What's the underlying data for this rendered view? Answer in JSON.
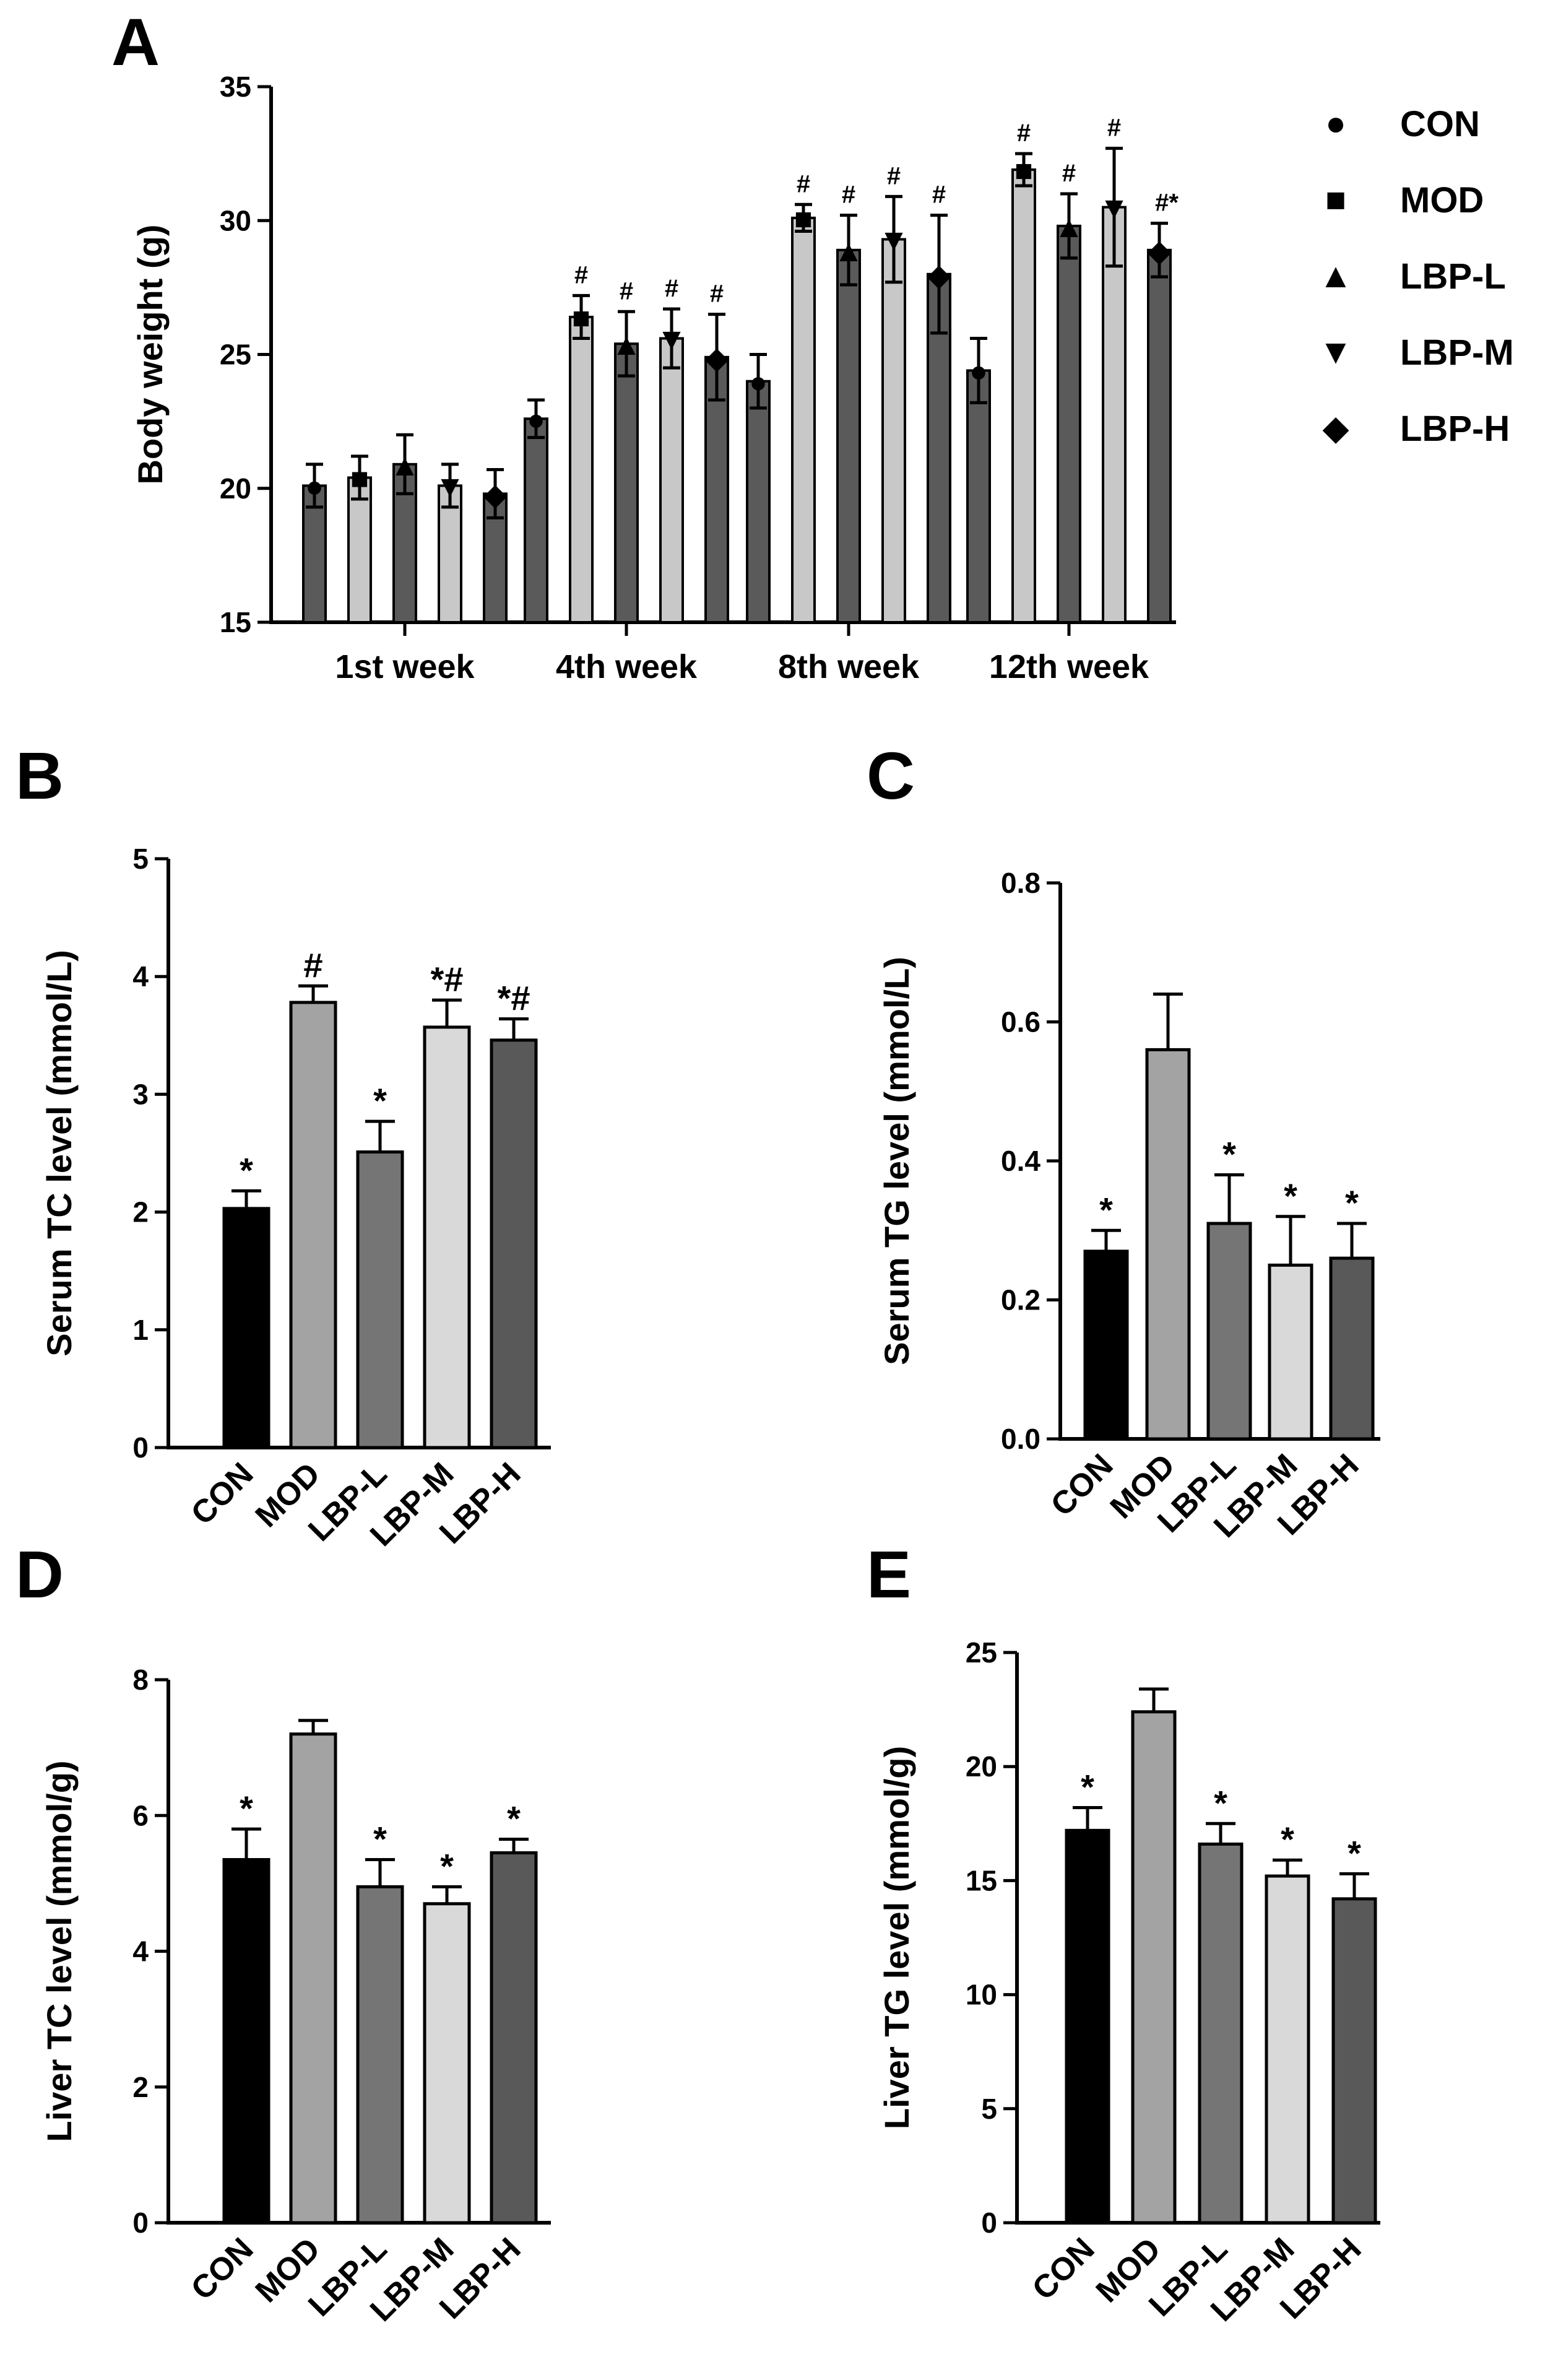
{
  "colors": {
    "CON": "#000000",
    "MOD": "#a3a3a3",
    "LBP-L": "#757575",
    "LBP-M": "#d9d9d9",
    "LBP-H": "#595959",
    "A_dark": "#5a5a5a",
    "A_light": "#c8c8c8",
    "stroke": "#000000"
  },
  "chart_data": [
    {
      "panel": "A",
      "type": "bar",
      "ylabel": "Body weight (g)",
      "ylim": [
        15,
        35
      ],
      "yticks": [
        15,
        20,
        25,
        30,
        35
      ],
      "categories": [
        "1st week",
        "4th week",
        "8th week",
        "12th week"
      ],
      "series": [
        {
          "name": "CON",
          "marker": "●",
          "values": [
            20.1,
            22.6,
            24.0,
            24.4
          ],
          "errors": [
            0.8,
            0.7,
            1.0,
            1.2
          ],
          "sig": [
            "",
            "",
            "",
            ""
          ]
        },
        {
          "name": "MOD",
          "marker": "■",
          "values": [
            20.4,
            26.4,
            30.1,
            31.9
          ],
          "errors": [
            0.8,
            0.8,
            0.5,
            0.6
          ],
          "sig": [
            "",
            "#",
            "#",
            "#"
          ]
        },
        {
          "name": "LBP-L",
          "marker": "▲",
          "values": [
            20.9,
            25.4,
            28.9,
            29.8
          ],
          "errors": [
            1.1,
            1.2,
            1.3,
            1.2
          ],
          "sig": [
            "",
            "#",
            "#",
            "#"
          ]
        },
        {
          "name": "LBP-M",
          "marker": "▼",
          "values": [
            20.1,
            25.6,
            29.3,
            30.5
          ],
          "errors": [
            0.8,
            1.1,
            1.6,
            2.2
          ],
          "sig": [
            "",
            "#",
            "#",
            "#"
          ]
        },
        {
          "name": "LBP-H",
          "marker": "◆",
          "values": [
            19.8,
            24.9,
            28.0,
            28.9
          ],
          "errors": [
            0.9,
            1.6,
            2.2,
            1.0
          ],
          "sig": [
            "",
            "#",
            "#",
            "#*"
          ]
        }
      ]
    },
    {
      "panel": "B",
      "type": "bar",
      "ylabel": "Serum TC level (mmol/L)",
      "ylim": [
        0,
        5
      ],
      "yticks": [
        0,
        1,
        2,
        3,
        4,
        5
      ],
      "categories": [
        "CON",
        "MOD",
        "LBP-L",
        "LBP-M",
        "LBP-H"
      ],
      "values": [
        2.03,
        3.78,
        2.51,
        3.57,
        3.46
      ],
      "errors": [
        0.15,
        0.14,
        0.26,
        0.23,
        0.18
      ],
      "sig": [
        "*",
        "#",
        "*",
        "*#",
        "*#"
      ]
    },
    {
      "panel": "C",
      "type": "bar",
      "ylabel": "Serum TG level (mmol/L)",
      "ylim": [
        0,
        0.8
      ],
      "yticks": [
        0.0,
        0.2,
        0.4,
        0.6,
        0.8
      ],
      "ytick_labels": [
        "0.0",
        "0.2",
        "0.4",
        "0.6",
        "0.8"
      ],
      "categories": [
        "CON",
        "MOD",
        "LBP-L",
        "LBP-M",
        "LBP-H"
      ],
      "values": [
        0.27,
        0.56,
        0.31,
        0.25,
        0.26
      ],
      "errors": [
        0.03,
        0.08,
        0.07,
        0.07,
        0.05
      ],
      "sig": [
        "*",
        "",
        "*",
        "*",
        "*"
      ]
    },
    {
      "panel": "D",
      "type": "bar",
      "ylabel": "Liver TC level (mmol/g)",
      "ylim": [
        0,
        8
      ],
      "yticks": [
        0,
        2,
        4,
        6,
        8
      ],
      "categories": [
        "CON",
        "MOD",
        "LBP-L",
        "LBP-M",
        "LBP-H"
      ],
      "values": [
        5.35,
        7.2,
        4.95,
        4.7,
        5.45
      ],
      "errors": [
        0.45,
        0.2,
        0.4,
        0.25,
        0.2
      ],
      "sig": [
        "*",
        "",
        "*",
        "*",
        "*"
      ]
    },
    {
      "panel": "E",
      "type": "bar",
      "ylabel": "Liver TG level (mmol/g)",
      "ylim": [
        0,
        25
      ],
      "yticks": [
        0,
        5,
        10,
        15,
        20,
        25
      ],
      "categories": [
        "CON",
        "MOD",
        "LBP-L",
        "LBP-M",
        "LBP-H"
      ],
      "values": [
        17.2,
        22.4,
        16.6,
        15.2,
        14.2
      ],
      "errors": [
        1.0,
        1.0,
        0.9,
        0.7,
        1.1
      ],
      "sig": [
        "*",
        "",
        "*",
        "*",
        "*"
      ]
    }
  ]
}
